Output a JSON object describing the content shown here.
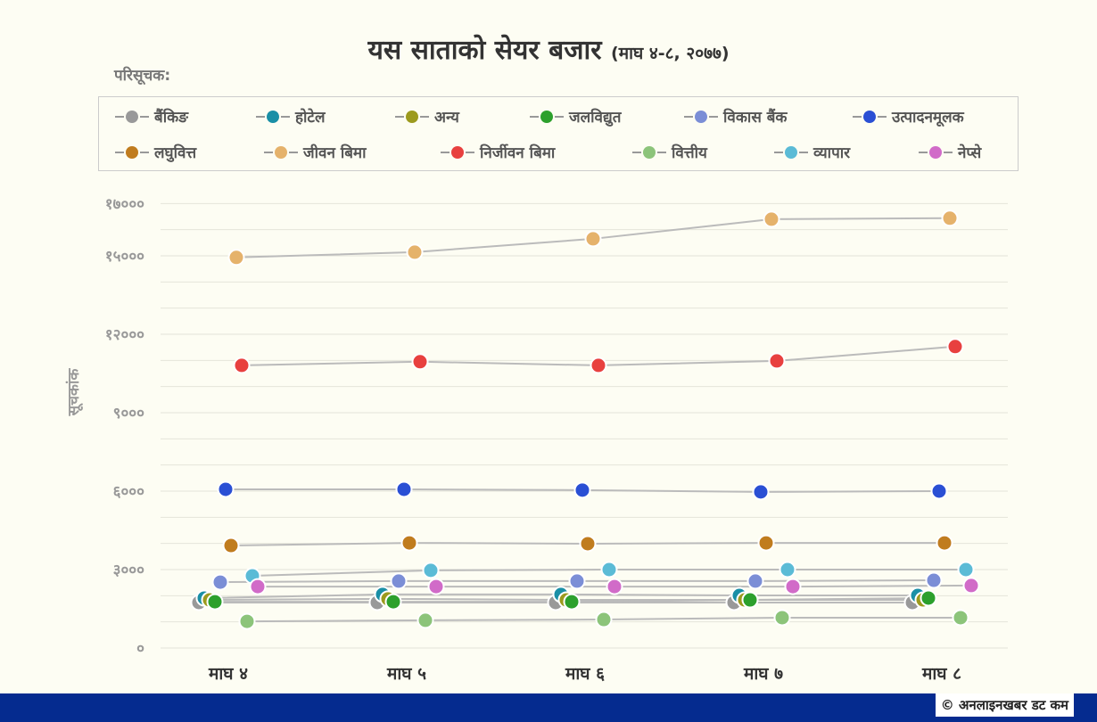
{
  "chart_data": {
    "type": "line",
    "title": "यस साताको सेयर बजार",
    "subtitle": "(माघ ४-८, २०७७)",
    "legend_title": "परिसूचक:",
    "ylabel": "सूचकांक",
    "xlabel": "",
    "ylim": [
      0,
      17000
    ],
    "yticks": [
      0,
      3000,
      6000,
      9000,
      12000,
      15000,
      17000
    ],
    "ytick_labels": [
      "०",
      "३०००",
      "६०००",
      "९०००",
      "१२०००",
      "१५०००",
      "१७०००"
    ],
    "categories": [
      "माघ ४",
      "माघ ५",
      "माघ ६",
      "माघ ७",
      "माघ ८"
    ],
    "legend_position": "top",
    "grid": true,
    "series": [
      {
        "name": "बैंकिङ",
        "color": "#999999",
        "values": [
          1740,
          1740,
          1740,
          1740,
          1740
        ]
      },
      {
        "name": "होटेल",
        "color": "#1a8fa6",
        "values": [
          1910,
          2050,
          2050,
          2010,
          2010
        ]
      },
      {
        "name": "अन्य",
        "color": "#9c9a1e",
        "values": [
          1840,
          1880,
          1840,
          1840,
          1840
        ]
      },
      {
        "name": "जलविद्युत",
        "color": "#2ca02c",
        "values": [
          1770,
          1770,
          1770,
          1840,
          1910
        ]
      },
      {
        "name": "विकास बैंक",
        "color": "#7b8ed6",
        "values": [
          2520,
          2560,
          2560,
          2560,
          2590
        ]
      },
      {
        "name": "उत्पादनमूलक",
        "color": "#2a4fd4",
        "values": [
          6070,
          6070,
          6040,
          5970,
          6000
        ]
      },
      {
        "name": "लघुवित्त",
        "color": "#c07c1e",
        "values": [
          3920,
          4020,
          3990,
          4020,
          4020
        ]
      },
      {
        "name": "जीवन बिमा",
        "color": "#e5b26b",
        "values": [
          14940,
          15140,
          15650,
          16400,
          16440
        ]
      },
      {
        "name": "निर्जीवन बिमा",
        "color": "#e8403f",
        "values": [
          10810,
          10950,
          10810,
          10980,
          11530
        ]
      },
      {
        "name": "वित्तीय",
        "color": "#8cc47a",
        "values": [
          1020,
          1060,
          1090,
          1160,
          1160
        ]
      },
      {
        "name": "व्यापार",
        "color": "#5bbbd6",
        "values": [
          2760,
          2970,
          3000,
          3000,
          3000
        ]
      },
      {
        "name": "नेप्से",
        "color": "#d16bc8",
        "values": [
          2350,
          2350,
          2350,
          2350,
          2390
        ]
      }
    ]
  },
  "footer": {
    "credit": "© अनलाइनखबर डट कम",
    "bar_color": "#052b8f"
  }
}
